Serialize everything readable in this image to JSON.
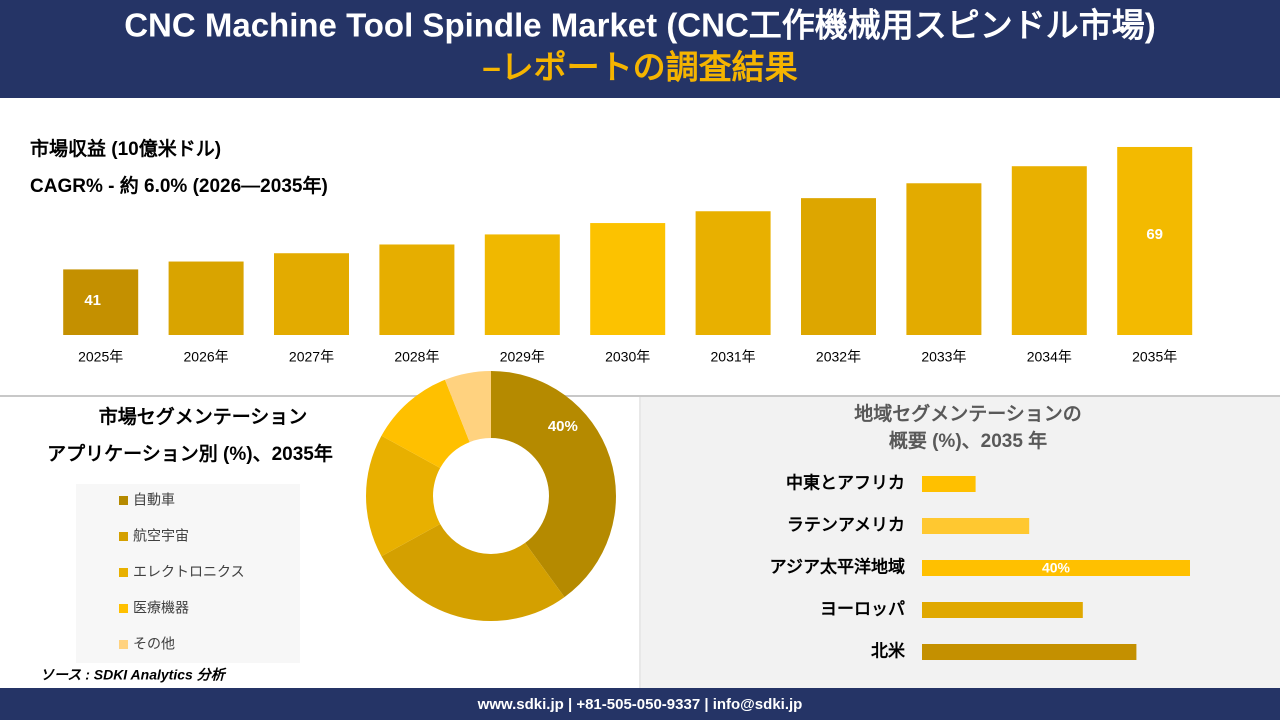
{
  "header": {
    "title": "CNC Machine Tool Spindle Market (CNC工作機械用スピンドル市場)",
    "subtitle": "–レポートの調査結果"
  },
  "chart_data": [
    {
      "type": "bar",
      "title": "市場収益 (10億米ドル)",
      "subtitle": "CAGR% - 約 6.0% (2026—2035年)",
      "categories": [
        "2025年",
        "2026年",
        "2027年",
        "2028年",
        "2029年",
        "2030年",
        "2031年",
        "2032年",
        "2033年",
        "2034年",
        "2035年"
      ],
      "values": [
        41,
        42.8,
        44.7,
        46.7,
        49,
        51.6,
        54.3,
        57.3,
        60.7,
        64.6,
        69
      ],
      "value_labels": [
        "41",
        null,
        null,
        null,
        null,
        null,
        null,
        null,
        null,
        null,
        "69"
      ],
      "colors": [
        "#c49000",
        "#d9a400",
        "#e3ab00",
        "#e6ae00",
        "#f0b800",
        "#fcc200",
        "#e8b000",
        "#dda600",
        "#e3ab00",
        "#e9b000",
        "#f3ba00"
      ],
      "ylim": [
        26,
        70
      ]
    },
    {
      "type": "donut",
      "title": "市場セグメンテーション",
      "subtitle": "アプリケーション別 (%)、2035年",
      "categories": [
        "自動車",
        "航空宇宙",
        "エレクトロニクス",
        "医療機器",
        "その他"
      ],
      "values": [
        40,
        27,
        16,
        11,
        6
      ],
      "value_labels": [
        "40%",
        null,
        null,
        null,
        null
      ],
      "colors": [
        "#b58a00",
        "#d4a000",
        "#e8b000",
        "#ffc000",
        "#ffd27f"
      ]
    },
    {
      "type": "hbar",
      "title": "地域セグメンテーションの",
      "subtitle": "概要 (%)、2035 年",
      "categories": [
        "中東とアフリカ",
        "ラテンアメリカ",
        "アジア太平洋地域",
        "ヨーロッパ",
        "北米"
      ],
      "values": [
        8,
        16,
        40,
        24,
        32
      ],
      "value_labels": [
        null,
        null,
        "40%",
        null,
        null
      ],
      "colors": [
        "#ffc000",
        "#ffc830",
        "#ffc000",
        "#e0a800",
        "#c49000"
      ],
      "xlim": [
        0,
        40
      ]
    }
  ],
  "source": "ソース : SDKI Analytics 分析",
  "footer": "www.sdki.jp | +81-505-050-9337 | info@sdki.jp"
}
